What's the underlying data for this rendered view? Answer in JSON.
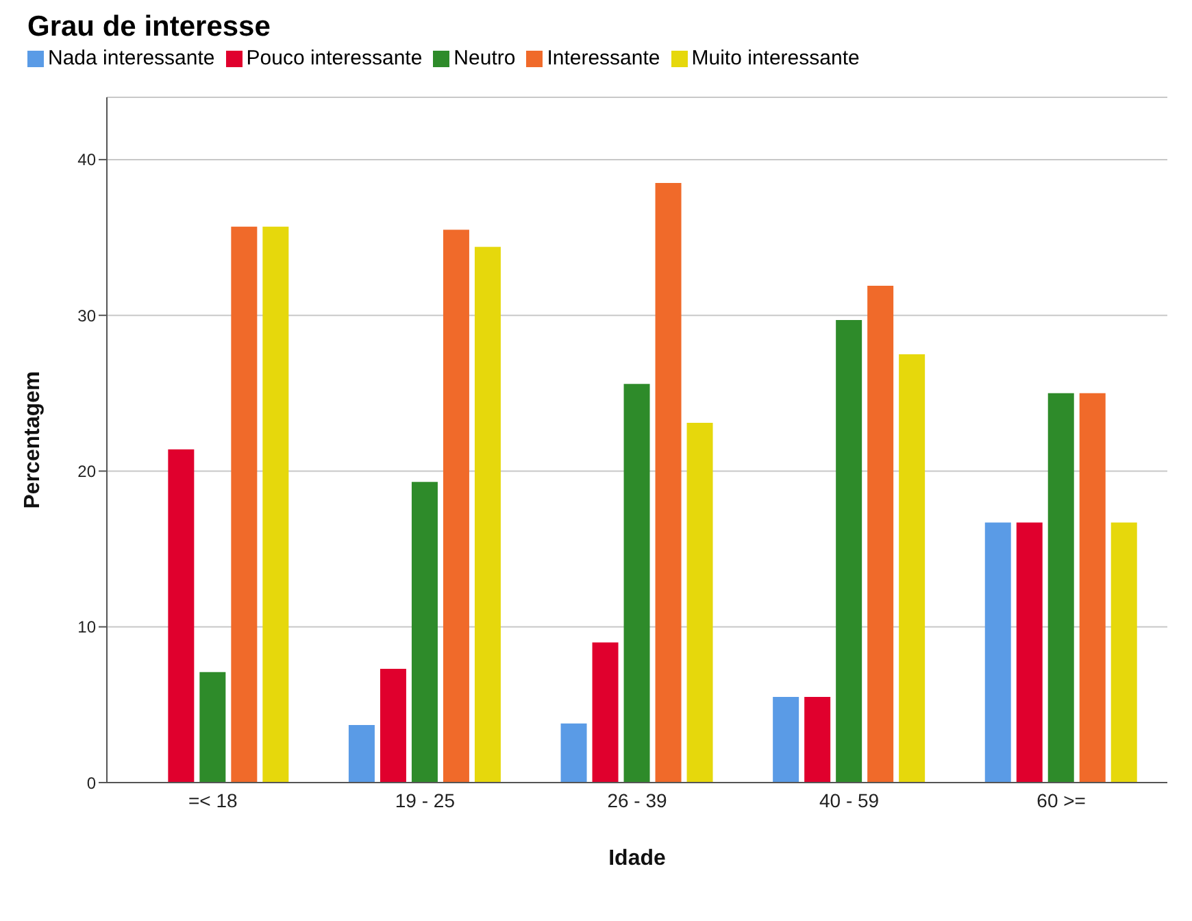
{
  "chart_data": {
    "type": "bar",
    "title": "Grau de interesse",
    "xlabel": "Idade",
    "ylabel": "Percentagem",
    "categories": [
      "=< 18",
      "19 - 25",
      "26 - 39",
      "40 - 59",
      "60 >="
    ],
    "series": [
      {
        "name": "Nada interessante",
        "color": "#5a9be6",
        "values": [
          null,
          3.7,
          3.8,
          5.5,
          16.7
        ]
      },
      {
        "name": "Pouco interessante",
        "color": "#e0002d",
        "values": [
          21.4,
          7.3,
          9.0,
          5.5,
          16.7
        ]
      },
      {
        "name": "Neutro",
        "color": "#2e8b2a",
        "values": [
          7.1,
          19.3,
          25.6,
          29.7,
          25.0
        ]
      },
      {
        "name": "Interessante",
        "color": "#f06a2a",
        "values": [
          35.7,
          35.5,
          38.5,
          31.9,
          25.0
        ]
      },
      {
        "name": "Muito interessante",
        "color": "#e6d80c",
        "values": [
          35.7,
          34.4,
          23.1,
          27.5,
          16.7
        ]
      }
    ],
    "ylim": [
      0,
      44
    ],
    "yticks": [
      0,
      10,
      20,
      30,
      40
    ],
    "grid": "y",
    "legend": "top left"
  }
}
